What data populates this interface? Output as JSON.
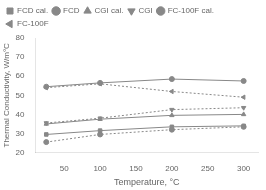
{
  "chart_data": {
    "type": "line",
    "xlabel": "Temperature, °C",
    "ylabel": "Thermal Conductivity, W/m°C",
    "x": [
      25,
      100,
      200,
      300
    ],
    "xlim": [
      10,
      320
    ],
    "xticks": [
      50,
      100,
      150,
      200,
      250,
      300
    ],
    "ylim": [
      20,
      80
    ],
    "yticks": [
      20,
      30,
      40,
      50,
      60,
      70,
      80
    ],
    "grid": false,
    "legend": "upper left",
    "series": [
      {
        "name": "FCD cal.",
        "color": "#888888",
        "marker": "square",
        "line_style": "solid",
        "values": [
          29.5,
          31.5,
          33.5,
          34.0
        ]
      },
      {
        "name": "FCD",
        "color": "#888888",
        "marker": "circle",
        "line_style": "dotted",
        "values": [
          25.5,
          29.5,
          32.0,
          33.5
        ]
      },
      {
        "name": "CGI cal.",
        "color": "#888888",
        "marker": "triangle-up",
        "line_style": "solid",
        "values": [
          35.0,
          37.5,
          39.5,
          40.0
        ]
      },
      {
        "name": "CGI",
        "color": "#888888",
        "marker": "triangle-down",
        "line_style": "dotted",
        "values": [
          35.5,
          38.0,
          42.5,
          43.5
        ]
      },
      {
        "name": "FC-100F cal.",
        "color": "#888888",
        "marker": "circle",
        "line_style": "solid",
        "values": [
          54.5,
          56.5,
          58.5,
          57.5
        ]
      },
      {
        "name": "FC-100F",
        "color": "#888888",
        "marker": "triangle-left",
        "line_style": "dotted",
        "values": [
          54.0,
          56.0,
          52.0,
          49.0
        ]
      }
    ]
  }
}
